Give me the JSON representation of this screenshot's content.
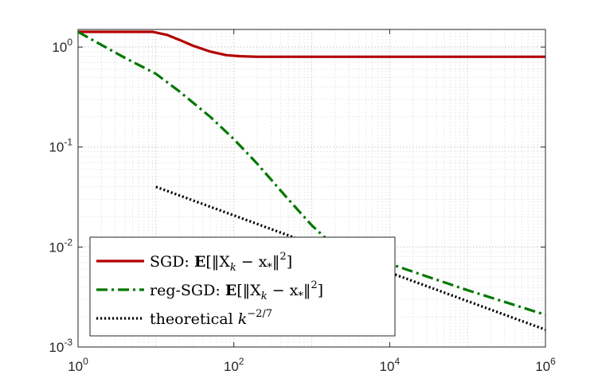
{
  "chart_data": {
    "type": "line",
    "x_scale": "log",
    "y_scale": "log",
    "xlim": [
      1,
      1000000
    ],
    "ylim": [
      0.001,
      1.5
    ],
    "grid": true,
    "minor_grid": true,
    "legend_position": "bottom-left",
    "x_ticks": [
      {
        "value": 1,
        "base": "10",
        "exp": "0"
      },
      {
        "value": 100,
        "base": "10",
        "exp": "2"
      },
      {
        "value": 10000,
        "base": "10",
        "exp": "4"
      },
      {
        "value": 1000000,
        "base": "10",
        "exp": "6"
      }
    ],
    "y_ticks": [
      {
        "value": 0.001,
        "base": "10",
        "exp": "-3"
      },
      {
        "value": 0.01,
        "base": "10",
        "exp": "-2"
      },
      {
        "value": 0.1,
        "base": "10",
        "exp": "-1"
      },
      {
        "value": 1,
        "base": "10",
        "exp": "0"
      }
    ],
    "series": [
      {
        "name": "SGD: E[‖X_k − x_*‖²]",
        "legend": {
          "prefix": "SGD:",
          "bold": "E",
          "expr": "[‖X",
          "sub1": "k",
          "mid": " − x",
          "sub2": "*",
          "tail": "‖",
          "sup": "2",
          "end": "]"
        },
        "color": "#b30000",
        "style": "solid",
        "x": [
          1,
          3,
          9,
          14,
          20,
          30,
          50,
          80,
          120,
          200,
          1000,
          10000,
          100000,
          1000000
        ],
        "y": [
          1.42,
          1.42,
          1.42,
          1.32,
          1.18,
          1.03,
          0.9,
          0.83,
          0.81,
          0.8,
          0.8,
          0.8,
          0.8,
          0.8
        ]
      },
      {
        "name": "reg-SGD: E[‖X_k − x_*‖²]",
        "legend": {
          "prefix": "reg-SGD:",
          "bold": "E",
          "expr": "[‖X",
          "sub1": "k",
          "mid": " − x",
          "sub2": "*",
          "tail": "‖",
          "sup": "2",
          "end": "]"
        },
        "color": "#007700",
        "style": "dashdot",
        "x": [
          1,
          2,
          4,
          10,
          20,
          50,
          100,
          200,
          500,
          1000,
          2000,
          5000,
          10000,
          100000,
          1000000
        ],
        "y": [
          1.42,
          1.05,
          0.78,
          0.54,
          0.36,
          0.2,
          0.12,
          0.068,
          0.03,
          0.0165,
          0.01,
          0.0078,
          0.0068,
          0.0037,
          0.0021
        ]
      },
      {
        "name": "theoretical k^{-2/7}",
        "legend": {
          "prefix": "theoretical",
          "var": "k",
          "sup": "−2/7"
        },
        "color": "#000000",
        "style": "dotted",
        "x": [
          10,
          1000000
        ],
        "y": [
          0.04,
          0.00149
        ]
      }
    ]
  }
}
